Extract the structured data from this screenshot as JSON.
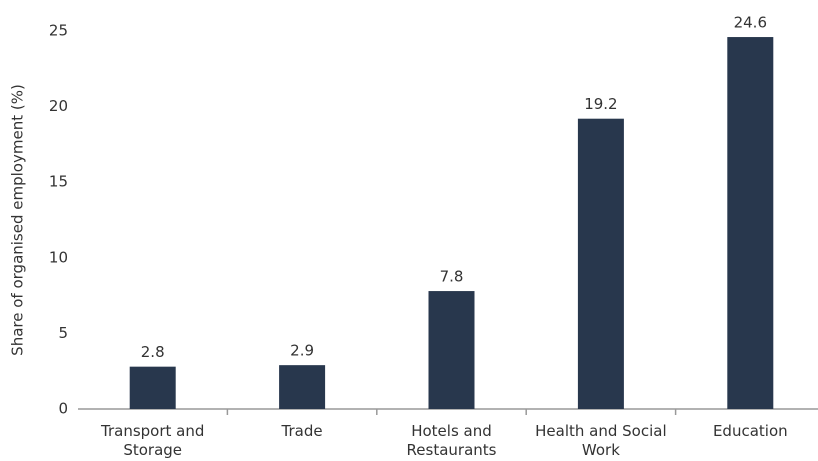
{
  "chart_data": {
    "type": "bar",
    "y_label": "Share of organised employment (%)",
    "categories": [
      "Transport and Storage",
      "Trade",
      "Hotels and Restaurants",
      "Health and Social Work",
      "Education"
    ],
    "values": [
      2.8,
      2.9,
      7.8,
      19.2,
      24.6
    ],
    "color": "#28374d",
    "ylim": [
      0,
      25
    ],
    "yticks": [
      0,
      5,
      10,
      15,
      20,
      25
    ],
    "grid": false
  }
}
